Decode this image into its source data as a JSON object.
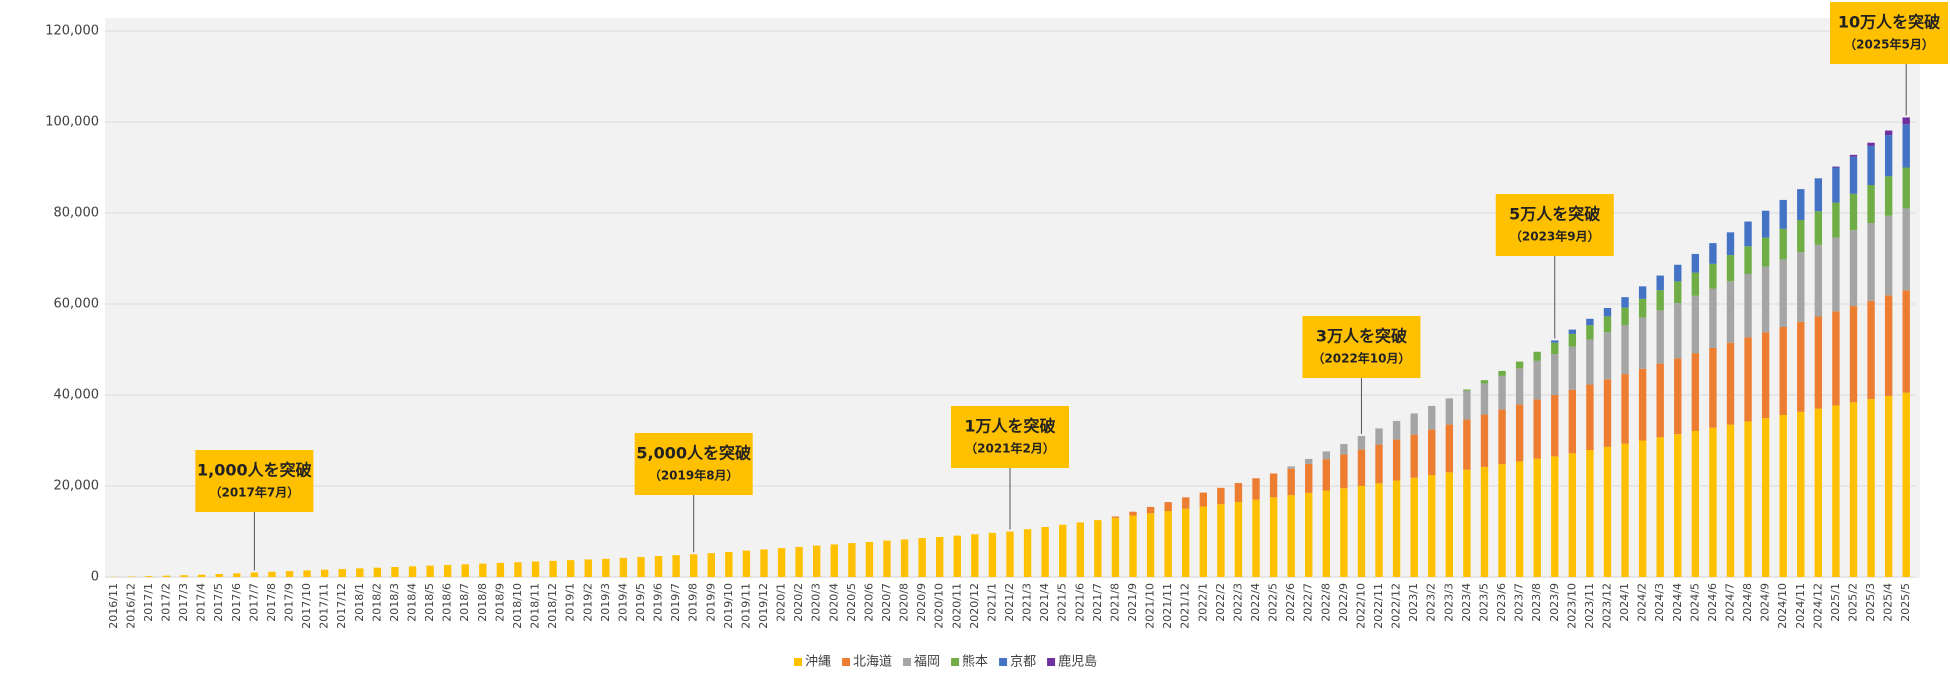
{
  "chart_data": {
    "type": "stacked_bar",
    "categories": [
      "2016/11",
      "2016/12",
      "2017/1",
      "2017/2",
      "2017/3",
      "2017/4",
      "2017/5",
      "2017/6",
      "2017/7",
      "2017/8",
      "2017/9",
      "2017/10",
      "2017/11",
      "2017/12",
      "2018/1",
      "2018/2",
      "2018/3",
      "2018/4",
      "2018/5",
      "2018/6",
      "2018/7",
      "2018/8",
      "2018/9",
      "2018/10",
      "2018/11",
      "2018/12",
      "2019/1",
      "2019/2",
      "2019/3",
      "2019/4",
      "2019/5",
      "2019/6",
      "2019/7",
      "2019/8",
      "2019/9",
      "2019/10",
      "2019/11",
      "2019/12",
      "2020/1",
      "2020/2",
      "2020/3",
      "2020/4",
      "2020/5",
      "2020/6",
      "2020/7",
      "2020/8",
      "2020/9",
      "2020/10",
      "2020/11",
      "2020/12",
      "2021/1",
      "2021/2",
      "2021/3",
      "2021/4",
      "2021/5",
      "2021/6",
      "2021/7",
      "2021/8",
      "2021/9",
      "2021/10",
      "2021/11",
      "2021/12",
      "2022/1",
      "2022/2",
      "2022/3",
      "2022/4",
      "2022/5",
      "2022/6",
      "2022/7",
      "2022/8",
      "2022/9",
      "2022/10",
      "2022/11",
      "2022/12",
      "2023/1",
      "2023/2",
      "2023/3",
      "2023/4",
      "2023/5",
      "2023/6",
      "2023/7",
      "2023/8",
      "2023/9",
      "2023/10",
      "2023/11",
      "2023/12",
      "2024/1",
      "2024/2",
      "2024/3",
      "2024/4",
      "2024/5",
      "2024/6",
      "2024/7",
      "2024/8",
      "2024/9",
      "2024/10",
      "2024/11",
      "2024/12",
      "2025/1",
      "2025/2",
      "2025/3",
      "2025/4",
      "2025/5"
    ],
    "series": [
      {
        "name": "沖縄",
        "color": "#ffc000",
        "values": [
          50,
          100,
          200,
          300,
          400,
          500,
          650,
          800,
          1000,
          1150,
          1300,
          1450,
          1600,
          1750,
          1900,
          2050,
          2200,
          2350,
          2500,
          2650,
          2800,
          2950,
          3100,
          3250,
          3400,
          3550,
          3700,
          3850,
          4000,
          4200,
          4400,
          4600,
          4800,
          5000,
          5250,
          5500,
          5800,
          6050,
          6350,
          6600,
          6900,
          7150,
          7450,
          7700,
          8000,
          8250,
          8550,
          8800,
          9100,
          9400,
          9700,
          10000,
          10500,
          11000,
          11500,
          12000,
          12500,
          13000,
          13500,
          14000,
          14500,
          15000,
          15500,
          16000,
          16500,
          17000,
          17500,
          18000,
          18500,
          19000,
          19500,
          20000,
          20600,
          21200,
          21800,
          22400,
          23000,
          23600,
          24200,
          24800,
          25400,
          26000,
          26500,
          27200,
          27900,
          28600,
          29300,
          30000,
          30700,
          31400,
          32100,
          32800,
          33500,
          34200,
          34900,
          35600,
          36300,
          37000,
          37700,
          38400,
          39100,
          39800,
          40500
        ]
      },
      {
        "name": "北海道",
        "color": "#ed7d31",
        "values": [
          0,
          0,
          0,
          0,
          0,
          0,
          0,
          0,
          0,
          0,
          0,
          0,
          0,
          0,
          0,
          0,
          0,
          0,
          0,
          0,
          0,
          0,
          0,
          0,
          0,
          0,
          0,
          0,
          0,
          0,
          0,
          0,
          0,
          0,
          0,
          0,
          0,
          0,
          0,
          0,
          0,
          0,
          0,
          0,
          0,
          0,
          0,
          0,
          0,
          0,
          0,
          0,
          0,
          0,
          0,
          0,
          0,
          300,
          850,
          1400,
          1950,
          2500,
          3050,
          3600,
          4150,
          4700,
          5250,
          5800,
          6350,
          6900,
          7450,
          8000,
          8500,
          9000,
          9500,
          10000,
          10500,
          11000,
          11500,
          12000,
          12500,
          13000,
          13500,
          13950,
          14400,
          14850,
          15300,
          15750,
          16200,
          16650,
          17100,
          17550,
          18000,
          18450,
          18900,
          19350,
          19800,
          20250,
          20700,
          21150,
          21600,
          22050,
          22500
        ]
      },
      {
        "name": "福岡",
        "color": "#a5a5a5",
        "values": [
          0,
          0,
          0,
          0,
          0,
          0,
          0,
          0,
          0,
          0,
          0,
          0,
          0,
          0,
          0,
          0,
          0,
          0,
          0,
          0,
          0,
          0,
          0,
          0,
          0,
          0,
          0,
          0,
          0,
          0,
          0,
          0,
          0,
          0,
          0,
          0,
          0,
          0,
          0,
          0,
          0,
          0,
          0,
          0,
          0,
          0,
          0,
          0,
          0,
          0,
          0,
          0,
          0,
          0,
          0,
          0,
          0,
          0,
          0,
          0,
          0,
          0,
          0,
          0,
          0,
          0,
          0,
          500,
          1100,
          1700,
          2300,
          3000,
          3550,
          4100,
          4650,
          5200,
          5750,
          6300,
          6850,
          7400,
          7950,
          8500,
          9000,
          9450,
          9900,
          10350,
          10800,
          11250,
          11700,
          12150,
          12600,
          13050,
          13500,
          13950,
          14400,
          14850,
          15300,
          15750,
          16200,
          16650,
          17100,
          17550,
          18000
        ]
      },
      {
        "name": "熊本",
        "color": "#70ad47",
        "values": [
          0,
          0,
          0,
          0,
          0,
          0,
          0,
          0,
          0,
          0,
          0,
          0,
          0,
          0,
          0,
          0,
          0,
          0,
          0,
          0,
          0,
          0,
          0,
          0,
          0,
          0,
          0,
          0,
          0,
          0,
          0,
          0,
          0,
          0,
          0,
          0,
          0,
          0,
          0,
          0,
          0,
          0,
          0,
          0,
          0,
          0,
          0,
          0,
          0,
          0,
          0,
          0,
          0,
          0,
          0,
          0,
          0,
          0,
          0,
          0,
          0,
          0,
          0,
          0,
          0,
          0,
          0,
          0,
          0,
          0,
          0,
          0,
          0,
          0,
          0,
          0,
          0,
          300,
          700,
          1100,
          1500,
          2000,
          2500,
          2825,
          3150,
          3475,
          3800,
          4125,
          4450,
          4775,
          5100,
          5425,
          5750,
          6075,
          6400,
          6725,
          7050,
          7375,
          7700,
          8025,
          8350,
          8675,
          9000
        ]
      },
      {
        "name": "京都",
        "color": "#4472c4",
        "values": [
          0,
          0,
          0,
          0,
          0,
          0,
          0,
          0,
          0,
          0,
          0,
          0,
          0,
          0,
          0,
          0,
          0,
          0,
          0,
          0,
          0,
          0,
          0,
          0,
          0,
          0,
          0,
          0,
          0,
          0,
          0,
          0,
          0,
          0,
          0,
          0,
          0,
          0,
          0,
          0,
          0,
          0,
          0,
          0,
          0,
          0,
          0,
          0,
          0,
          0,
          0,
          0,
          0,
          0,
          0,
          0,
          0,
          0,
          0,
          0,
          0,
          0,
          0,
          0,
          0,
          0,
          0,
          0,
          0,
          0,
          0,
          0,
          0,
          0,
          0,
          0,
          0,
          0,
          0,
          0,
          0,
          0,
          500,
          950,
          1400,
          1850,
          2300,
          2750,
          3200,
          3650,
          4100,
          4550,
          5000,
          5450,
          5900,
          6350,
          6800,
          7250,
          7700,
          8150,
          8600,
          9050,
          9500
        ]
      },
      {
        "name": "鹿児島",
        "color": "#7030a0",
        "values": [
          0,
          0,
          0,
          0,
          0,
          0,
          0,
          0,
          0,
          0,
          0,
          0,
          0,
          0,
          0,
          0,
          0,
          0,
          0,
          0,
          0,
          0,
          0,
          0,
          0,
          0,
          0,
          0,
          0,
          0,
          0,
          0,
          0,
          0,
          0,
          0,
          0,
          0,
          0,
          0,
          0,
          0,
          0,
          0,
          0,
          0,
          0,
          0,
          0,
          0,
          0,
          0,
          0,
          0,
          0,
          0,
          0,
          0,
          0,
          0,
          0,
          0,
          0,
          0,
          0,
          0,
          0,
          0,
          0,
          0,
          0,
          0,
          0,
          0,
          0,
          0,
          0,
          0,
          0,
          0,
          0,
          0,
          0,
          0,
          0,
          0,
          0,
          0,
          0,
          0,
          0,
          0,
          0,
          0,
          0,
          0,
          0,
          0,
          200,
          400,
          700,
          1000,
          1500
        ]
      }
    ],
    "ylim": [
      0,
      120000
    ],
    "yticks": [
      0,
      {
        "value": 20000,
        "label": "20,000"
      },
      {
        "value": 40000,
        "label": "40,000"
      },
      {
        "value": 60000,
        "label": "60,000"
      },
      {
        "value": 80000,
        "label": "80,000"
      },
      {
        "value": 100000,
        "label": "100,000"
      },
      {
        "value": 120000,
        "label": "120,000"
      }
    ],
    "grid": true,
    "legend": "bottom",
    "annotations": [
      {
        "text": "1,000人を突破",
        "date": "（2017年7月）",
        "category": "2017/7"
      },
      {
        "text": "5,000人を突破",
        "date": "（2019年8月）",
        "category": "2019/8"
      },
      {
        "text": "1万人を突破",
        "date": "（2021年2月）",
        "category": "2021/2"
      },
      {
        "text": "3万人を突破",
        "date": "（2022年10月）",
        "category": "2022/10"
      },
      {
        "text": "5万人を突破",
        "date": "（2023年9月）",
        "category": "2023/9"
      },
      {
        "text": "10万人を突破",
        "date": "（2025年5月）",
        "category": "2025/5"
      }
    ]
  }
}
